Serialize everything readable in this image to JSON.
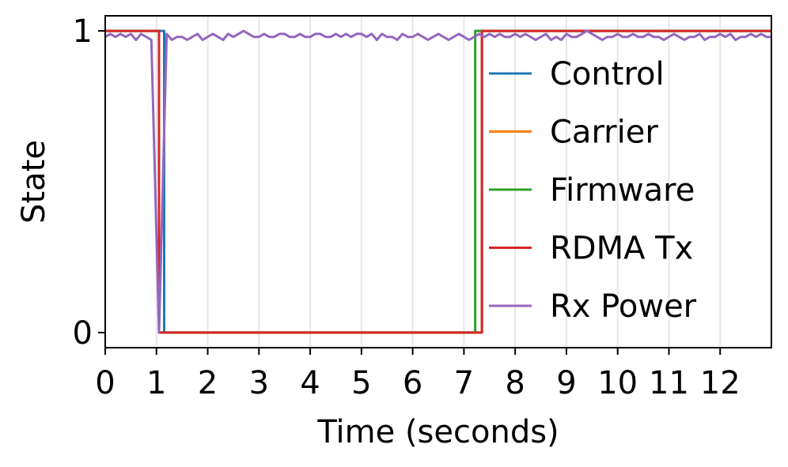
{
  "chart_data": {
    "type": "line",
    "title": "",
    "xlabel": "Time (seconds)",
    "ylabel": "State",
    "xlim": [
      0,
      13
    ],
    "ylim": [
      -0.05,
      1.05
    ],
    "xticks": [
      0,
      1,
      2,
      3,
      4,
      5,
      6,
      7,
      8,
      9,
      10,
      11,
      12
    ],
    "xtick_labels": [
      "0",
      "1",
      "2",
      "3",
      "4",
      "5",
      "6",
      "7",
      "8",
      "9",
      "10",
      "11",
      "12"
    ],
    "yticks": [
      0,
      1
    ],
    "ytick_labels": [
      "0",
      "1"
    ],
    "grid": "vertical",
    "legend_position": "right",
    "series": [
      {
        "name": "Control",
        "color": "#1f77b4",
        "x": [
          0,
          1.15,
          1.15,
          7.35,
          7.35,
          13
        ],
        "y": [
          1,
          1,
          0,
          0,
          1,
          1
        ]
      },
      {
        "name": "Carrier",
        "color": "#ff7f0e",
        "x": [
          0,
          1.05,
          1.05,
          7.35,
          7.35,
          13
        ],
        "y": [
          1,
          1,
          0,
          0,
          1,
          1
        ]
      },
      {
        "name": "Firmware",
        "color": "#2ca02c",
        "x": [
          0,
          1.05,
          1.05,
          7.22,
          7.22,
          13
        ],
        "y": [
          1,
          1,
          0,
          0,
          1,
          1
        ]
      },
      {
        "name": "RDMA Tx",
        "color": "#d62728",
        "x": [
          0,
          1.05,
          1.05,
          7.35,
          7.35,
          13
        ],
        "y": [
          1,
          1,
          0,
          0,
          1,
          1
        ]
      },
      {
        "name": "Rx Power",
        "color": "#9467bd",
        "x": [
          0,
          0.1,
          0.2,
          0.3,
          0.4,
          0.5,
          0.6,
          0.7,
          0.8,
          0.9,
          1.05,
          1.2,
          1.3,
          1.4,
          1.5,
          1.6,
          1.7,
          1.8,
          1.9,
          2.0,
          2.1,
          2.2,
          2.3,
          2.4,
          2.5,
          2.6,
          2.7,
          2.8,
          2.9,
          3.0,
          3.1,
          3.2,
          3.3,
          3.4,
          3.5,
          3.6,
          3.7,
          3.8,
          3.9,
          4.0,
          4.1,
          4.2,
          4.3,
          4.4,
          4.5,
          4.6,
          4.7,
          4.8,
          4.9,
          5.0,
          5.1,
          5.2,
          5.3,
          5.4,
          5.5,
          5.6,
          5.7,
          5.8,
          5.9,
          6.0,
          6.1,
          6.2,
          6.3,
          6.4,
          6.5,
          6.6,
          6.7,
          6.8,
          6.9,
          7.0,
          7.1,
          7.2,
          7.3,
          7.4,
          7.5,
          7.6,
          7.7,
          7.8,
          7.9,
          8.0,
          8.1,
          8.2,
          8.3,
          8.4,
          8.5,
          8.6,
          8.7,
          8.8,
          8.9,
          9.0,
          9.1,
          9.2,
          9.3,
          9.4,
          9.5,
          9.6,
          9.7,
          9.8,
          9.9,
          10.0,
          10.1,
          10.2,
          10.3,
          10.4,
          10.5,
          10.6,
          10.7,
          10.8,
          10.9,
          11.0,
          11.1,
          11.2,
          11.3,
          11.4,
          11.5,
          11.6,
          11.7,
          11.8,
          11.9,
          12.0,
          12.1,
          12.2,
          12.3,
          12.4,
          12.5,
          12.6,
          12.7,
          12.8,
          12.9,
          13.0
        ],
        "y": [
          0.98,
          0.99,
          0.98,
          0.99,
          0.98,
          0.99,
          0.97,
          0.99,
          0.98,
          0.97,
          0.0,
          0.99,
          0.97,
          0.98,
          0.98,
          0.97,
          0.98,
          0.99,
          0.97,
          0.98,
          0.99,
          0.98,
          0.97,
          0.99,
          0.98,
          0.99,
          1.0,
          0.99,
          0.98,
          0.98,
          0.99,
          0.98,
          0.98,
          0.99,
          0.99,
          0.98,
          0.98,
          0.99,
          0.98,
          0.98,
          0.99,
          0.99,
          0.98,
          0.98,
          0.99,
          0.98,
          0.99,
          0.98,
          0.99,
          0.99,
          0.98,
          0.99,
          0.97,
          0.99,
          0.98,
          0.98,
          0.97,
          0.99,
          0.98,
          0.98,
          0.99,
          0.98,
          0.97,
          0.98,
          0.99,
          0.98,
          0.97,
          0.98,
          0.99,
          0.98,
          0.97,
          0.98,
          0.99,
          0.98,
          0.99,
          0.98,
          0.99,
          0.98,
          0.98,
          0.99,
          0.98,
          0.99,
          0.98,
          0.97,
          0.98,
          0.99,
          0.97,
          0.98,
          0.97,
          0.99,
          0.98,
          0.98,
          0.99,
          1.0,
          0.99,
          0.98,
          0.97,
          0.98,
          0.98,
          0.99,
          0.98,
          0.98,
          0.99,
          0.98,
          0.98,
          0.99,
          0.98,
          0.98,
          0.97,
          0.98,
          0.99,
          0.98,
          0.97,
          0.98,
          0.98,
          0.99,
          0.97,
          0.98,
          0.98,
          0.99,
          0.98,
          0.99,
          0.97,
          0.98,
          0.98,
          0.99,
          0.98,
          0.99,
          0.98,
          0.98
        ]
      }
    ]
  }
}
